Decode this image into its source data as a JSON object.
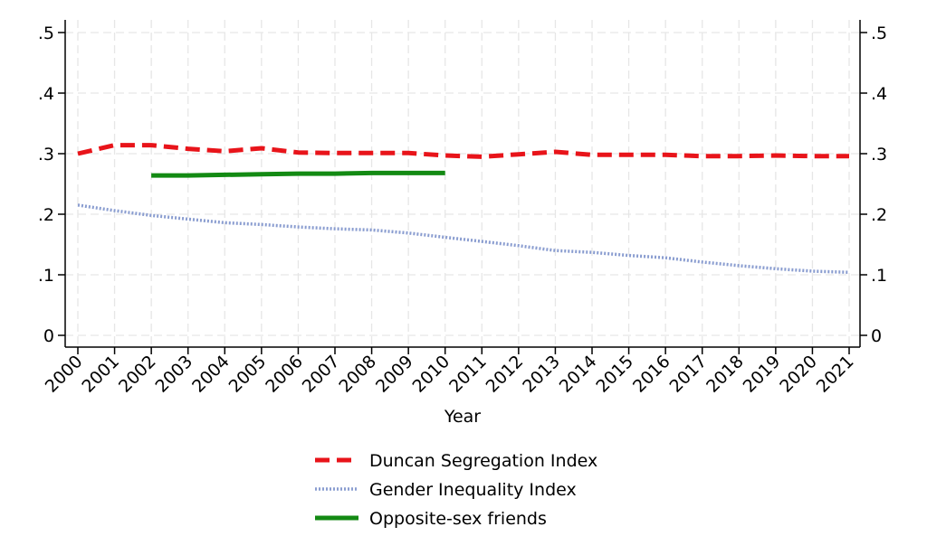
{
  "chart_data": {
    "type": "line",
    "xlabel": "Year",
    "ylabel": "",
    "ylabel_right": "",
    "x": [
      2000,
      2001,
      2002,
      2003,
      2004,
      2005,
      2006,
      2007,
      2008,
      2009,
      2010,
      2011,
      2012,
      2013,
      2014,
      2015,
      2016,
      2017,
      2018,
      2019,
      2020,
      2021
    ],
    "ylim": [
      0,
      0.5
    ],
    "yticks": [
      0,
      0.1,
      0.2,
      0.3,
      0.4,
      0.5
    ],
    "ytick_labels": [
      "0",
      ".1",
      ".2",
      ".3",
      ".4",
      ".5"
    ],
    "grid": true,
    "legend_position": "bottom",
    "series": [
      {
        "name": "Duncan Segregation Index",
        "style": "dashed",
        "color": "#e8141a",
        "values": [
          0.3,
          0.314,
          0.314,
          0.308,
          0.304,
          0.309,
          0.302,
          0.301,
          0.301,
          0.301,
          0.297,
          0.295,
          0.299,
          0.303,
          0.298,
          0.298,
          0.298,
          0.296,
          0.296,
          0.297,
          0.296,
          0.296
        ]
      },
      {
        "name": "Gender Inequality Index",
        "style": "dotted",
        "color": "#8a9dd0",
        "values": [
          0.215,
          0.206,
          0.198,
          0.192,
          0.186,
          0.183,
          0.179,
          0.176,
          0.174,
          0.169,
          0.162,
          0.155,
          0.148,
          0.14,
          0.137,
          0.132,
          0.128,
          0.121,
          0.115,
          0.11,
          0.106,
          0.104
        ]
      },
      {
        "name": "Opposite-sex friends",
        "style": "solid",
        "color": "#138a13",
        "values": [
          null,
          null,
          0.264,
          0.264,
          0.265,
          0.266,
          0.267,
          0.267,
          0.268,
          0.268,
          0.268,
          null,
          null,
          null,
          null,
          null,
          null,
          null,
          null,
          null,
          null,
          null
        ]
      }
    ]
  }
}
